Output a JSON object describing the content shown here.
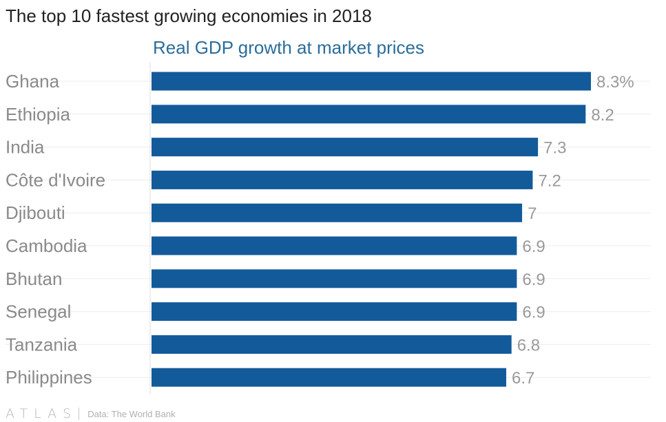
{
  "chart_data": {
    "type": "bar",
    "orientation": "horizontal",
    "title": "The top 10 fastest growing economies in 2018",
    "subtitle": "Real GDP growth at market prices",
    "categories": [
      "Ghana",
      "Ethiopia",
      "India",
      "Côte d'Ivoire",
      "Djibouti",
      "Cambodia",
      "Bhutan",
      "Senegal",
      "Tanzania",
      "Philippines"
    ],
    "values": [
      8.3,
      8.2,
      7.3,
      7.2,
      7,
      6.9,
      6.9,
      6.9,
      6.8,
      6.7
    ],
    "value_labels": [
      "8.3%",
      "8.2",
      "7.3",
      "7.2",
      "7",
      "6.9",
      "6.9",
      "6.9",
      "6.8",
      "6.7"
    ],
    "xlim": [
      0,
      8.3
    ],
    "grid": true,
    "legend": "none",
    "bar_color": "#135a9a"
  },
  "footer": {
    "logo": "ATLAS",
    "source": "Data: The World Bank"
  },
  "colors": {
    "bar": "#135a9a",
    "title": "#222222",
    "subtitle": "#2b6d9a",
    "category_label": "#8a8a8a",
    "value_label": "#9a9a9a",
    "gridline": "#ececec",
    "axis": "#dcdcdc"
  }
}
